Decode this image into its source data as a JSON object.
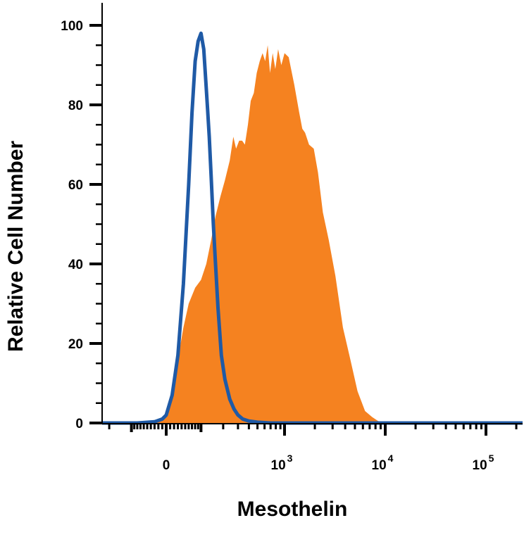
{
  "chart_data": {
    "type": "area",
    "title": "",
    "xlabel": "Mesothelin",
    "ylabel": "Relative Cell Number",
    "x_scale": "biexponential",
    "ylim": [
      0,
      100
    ],
    "grid": false,
    "legend": "none",
    "y_ticks": [
      {
        "value": 0,
        "label": "0"
      },
      {
        "value": 20,
        "label": "20"
      },
      {
        "value": 40,
        "label": "40"
      },
      {
        "value": 60,
        "label": "60"
      },
      {
        "value": 80,
        "label": "80"
      },
      {
        "value": 100,
        "label": "100"
      }
    ],
    "x_ticks": [
      {
        "value": 0,
        "base": "0",
        "exp": ""
      },
      {
        "value": 1000,
        "base": "10",
        "exp": "3"
      },
      {
        "value": 10000,
        "base": "10",
        "exp": "4"
      },
      {
        "value": 100000,
        "base": "10",
        "exp": "5"
      }
    ],
    "series": [
      {
        "style": "filled",
        "color": "#F58220",
        "points": [
          [
            -80,
            0
          ],
          [
            -20,
            0.5
          ],
          [
            0,
            2
          ],
          [
            15,
            8
          ],
          [
            30,
            16
          ],
          [
            45,
            24
          ],
          [
            60,
            30
          ],
          [
            80,
            34
          ],
          [
            100,
            36
          ],
          [
            120,
            40
          ],
          [
            140,
            46
          ],
          [
            160,
            52
          ],
          [
            185,
            57
          ],
          [
            210,
            61
          ],
          [
            240,
            66
          ],
          [
            265,
            72
          ],
          [
            285,
            69
          ],
          [
            310,
            71
          ],
          [
            335,
            71
          ],
          [
            360,
            70
          ],
          [
            390,
            75
          ],
          [
            420,
            81
          ],
          [
            455,
            83
          ],
          [
            490,
            88
          ],
          [
            530,
            91
          ],
          [
            570,
            93
          ],
          [
            610,
            91
          ],
          [
            650,
            95
          ],
          [
            690,
            88
          ],
          [
            740,
            93
          ],
          [
            790,
            89
          ],
          [
            850,
            94
          ],
          [
            920,
            90
          ],
          [
            1000,
            93
          ],
          [
            1100,
            92
          ],
          [
            1250,
            85
          ],
          [
            1400,
            78
          ],
          [
            1500,
            74
          ],
          [
            1600,
            73
          ],
          [
            1750,
            70
          ],
          [
            1950,
            69
          ],
          [
            2150,
            63
          ],
          [
            2400,
            53
          ],
          [
            2750,
            46
          ],
          [
            3200,
            37
          ],
          [
            3800,
            24
          ],
          [
            4500,
            16
          ],
          [
            5300,
            8
          ],
          [
            6300,
            3
          ],
          [
            7400,
            1.5
          ],
          [
            8500,
            0.5
          ],
          [
            10000,
            0
          ],
          [
            30000,
            0
          ],
          [
            300000,
            0
          ]
        ]
      },
      {
        "style": "line",
        "color": "#1F5AA6",
        "points": [
          [
            -1500,
            0
          ],
          [
            -80,
            0
          ],
          [
            -30,
            0.3
          ],
          [
            -10,
            1
          ],
          [
            0,
            2
          ],
          [
            15,
            7
          ],
          [
            30,
            17
          ],
          [
            45,
            35
          ],
          [
            60,
            60
          ],
          [
            70,
            78
          ],
          [
            80,
            91
          ],
          [
            90,
            96
          ],
          [
            100,
            98
          ],
          [
            110,
            94
          ],
          [
            118,
            86
          ],
          [
            125,
            79
          ],
          [
            132,
            72
          ],
          [
            140,
            62
          ],
          [
            150,
            50
          ],
          [
            160,
            40
          ],
          [
            172,
            29
          ],
          [
            190,
            17
          ],
          [
            210,
            11
          ],
          [
            240,
            6
          ],
          [
            270,
            3.5
          ],
          [
            300,
            2
          ],
          [
            340,
            1
          ],
          [
            400,
            0.5
          ],
          [
            500,
            0.2
          ],
          [
            700,
            0
          ],
          [
            10000,
            0
          ],
          [
            300000,
            0
          ]
        ]
      }
    ]
  }
}
